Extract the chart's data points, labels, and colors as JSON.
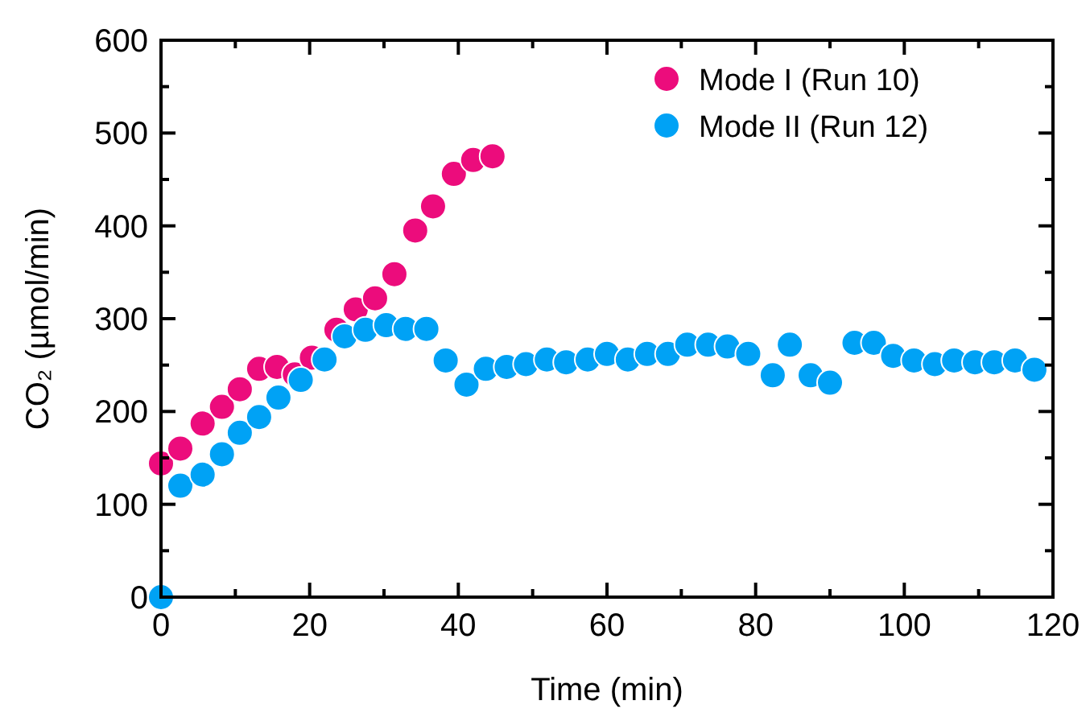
{
  "chart_data": {
    "type": "scatter",
    "xlabel": "Time (min)",
    "ylabel": "CO₂ (µmol/min)",
    "xlim": [
      0,
      120
    ],
    "ylim": [
      0,
      600
    ],
    "xticks": [
      0,
      {
        "value": 10,
        "label": null
      },
      20,
      {
        "value": 30,
        "label": null
      },
      40,
      {
        "value": 50,
        "label": null
      },
      60,
      {
        "value": 70,
        "label": null
      },
      80,
      {
        "value": 90,
        "label": null
      },
      100,
      {
        "value": 110,
        "label": null
      },
      120
    ],
    "yticks": [
      0,
      {
        "value": 50,
        "label": null
      },
      100,
      {
        "value": 150,
        "label": null
      },
      200,
      {
        "value": 250,
        "label": null
      },
      300,
      {
        "value": 350,
        "label": null
      },
      400,
      {
        "value": 450,
        "label": null
      },
      500,
      {
        "value": 550,
        "label": null
      },
      600
    ],
    "grid": false,
    "legend": "top right",
    "marker": "circle",
    "series": [
      {
        "name": "Mode I (Run 10)",
        "color": "#ec0c7c",
        "x": [
          0,
          2.6,
          5.6,
          8.2,
          10.6,
          13.2,
          15.6,
          18,
          20.3,
          23.6,
          26.2,
          28.8,
          31.4,
          34.2,
          36.6,
          39.4,
          42,
          44.6
        ],
        "values": [
          144,
          160,
          187,
          205,
          224,
          246,
          248,
          240,
          258,
          288,
          310,
          322,
          348,
          395,
          421,
          456,
          471,
          475
        ]
      },
      {
        "name": "Mode II (Run 12)",
        "color": "#00a2f5",
        "x": [
          0,
          2.6,
          5.6,
          8.2,
          10.6,
          13.2,
          15.8,
          18.8,
          22,
          24.7,
          27.5,
          30.3,
          32.9,
          35.7,
          38.3,
          41.1,
          43.7,
          46.5,
          49.1,
          51.9,
          54.5,
          57.4,
          60,
          62.8,
          65.4,
          68.2,
          70.8,
          73.6,
          76.2,
          79,
          82.3,
          84.6,
          87.4,
          90,
          93.3,
          95.9,
          98.5,
          101.3,
          104.1,
          106.7,
          109.5,
          112.1,
          114.9,
          117.5
        ],
        "values": [
          0,
          120,
          132,
          154,
          177,
          194,
          215,
          234,
          256,
          281,
          288,
          293,
          289,
          289,
          255,
          229,
          246,
          248,
          251,
          256,
          253,
          256,
          262,
          256,
          262,
          262,
          272,
          272,
          270,
          262,
          239,
          272,
          239,
          231,
          274,
          274,
          260,
          255,
          251,
          255,
          253,
          253,
          255,
          245
        ]
      }
    ]
  }
}
